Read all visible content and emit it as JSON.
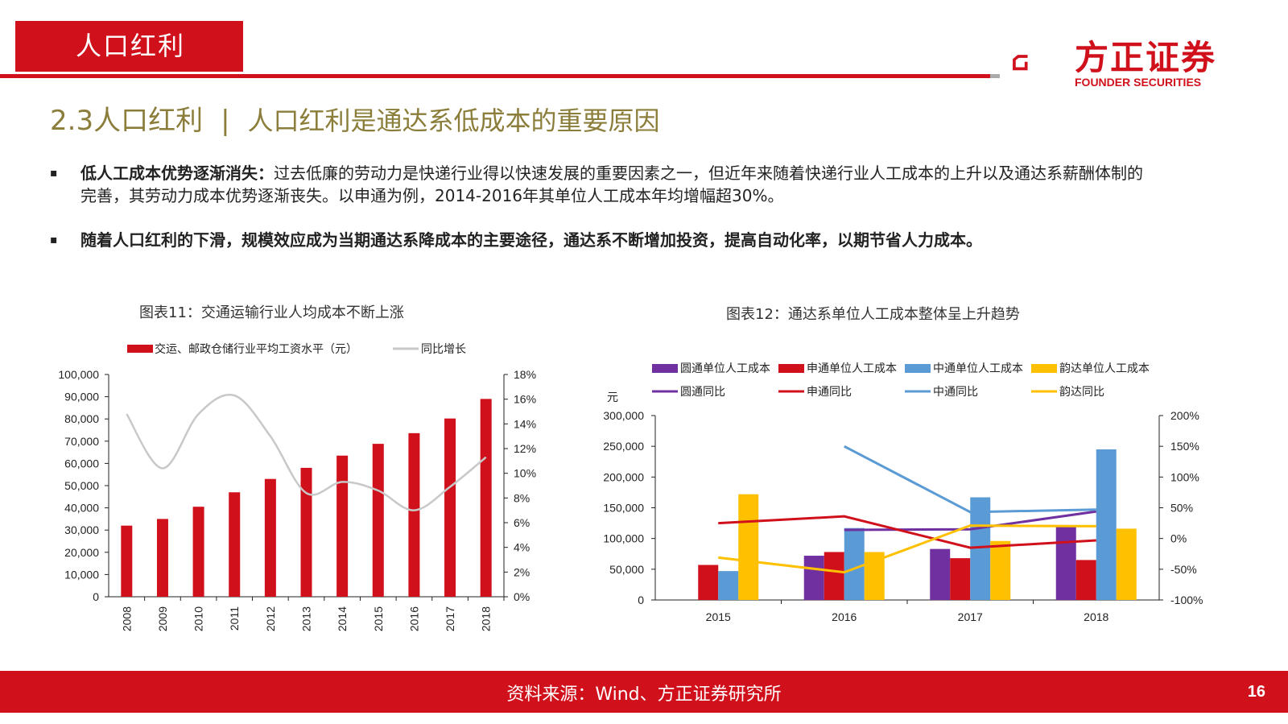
{
  "header": {
    "tag": "人口红利",
    "logo_name": "方正证券",
    "logo_en": "FOUNDER SECURITIES",
    "title_prefix": "2.3人口红利",
    "title_sep": "|",
    "title_sub": "人口红利是通达系低成本的重要原因"
  },
  "bullets": [
    {
      "mark": "▪",
      "bold": "低人工成本优势逐渐消失：",
      "text": "过去低廉的劳动力是快递行业得以快速发展的重要因素之一，但近年来随着快递行业人工成本的上升以及通达系薪酬体制的完善，其劳动力成本优势逐渐丧失。以申通为例，2014-2016年其单位人工成本年均增幅超30%。"
    },
    {
      "mark": "▪",
      "bold": "随着人口红利的下滑，规模效应成为当期通达系降成本的主要途径，通达系不断增加投资，提高自动化率，以期节省人力成本。",
      "text": ""
    }
  ],
  "colors": {
    "red": "#d0101b",
    "gray": "#c8c8c8",
    "purple": "#7030a0",
    "blue": "#5b9bd5",
    "yellow": "#ffc000",
    "title": "#8b7d3a"
  },
  "chart_data": [
    {
      "type": "bar",
      "title": "图表11：交通运输行业人均成本不断上涨",
      "categories": [
        "2008",
        "2009",
        "2010",
        "2011",
        "2012",
        "2013",
        "2014",
        "2015",
        "2016",
        "2017",
        "2018"
      ],
      "series": [
        {
          "name": "交运、邮政仓储行业平均工资水平（元）",
          "type": "bar",
          "axis": "left",
          "values": [
            32000,
            35000,
            40500,
            47000,
            53000,
            58000,
            63500,
            68800,
            73600,
            80200,
            89000
          ]
        },
        {
          "name": "同比增长",
          "type": "line",
          "axis": "right",
          "values": [
            14.8,
            10.4,
            14.8,
            16.3,
            13.0,
            8.4,
            9.3,
            8.6,
            7.0,
            8.9,
            11.3
          ]
        }
      ],
      "left_ticks": [
        "100,000",
        "90,000",
        "80,000",
        "70,000",
        "60,000",
        "50,000",
        "40,000",
        "30,000",
        "20,000",
        "10,000",
        "0"
      ],
      "right_ticks": [
        "18%",
        "16%",
        "14%",
        "12%",
        "10%",
        "8%",
        "6%",
        "4%",
        "2%",
        "0%"
      ],
      "ylim_left": [
        0,
        100000
      ],
      "ylim_right": [
        0,
        18
      ],
      "legend_placement": "top"
    },
    {
      "type": "bar",
      "title": "图表12：通达系单位人工成本整体呈上升趋势",
      "categories": [
        "2015",
        "2016",
        "2017",
        "2018"
      ],
      "ylabel_left": "元",
      "series": [
        {
          "name": "圆通单位人工成本",
          "type": "bar",
          "axis": "left",
          "color": "purple",
          "values": [
            null,
            72000,
            83000,
            120000
          ]
        },
        {
          "name": "申通单位人工成本",
          "type": "bar",
          "axis": "left",
          "color": "red",
          "values": [
            57000,
            78000,
            68000,
            65000
          ]
        },
        {
          "name": "中通单位人工成本",
          "type": "bar",
          "axis": "left",
          "color": "blue",
          "values": [
            47000,
            117000,
            167000,
            245000
          ]
        },
        {
          "name": "韵达单位人工成本",
          "type": "bar",
          "axis": "left",
          "color": "yellow",
          "values": [
            172000,
            78000,
            96000,
            116000
          ]
        },
        {
          "name": "圆通同比",
          "type": "line",
          "axis": "right",
          "color": "purple",
          "values": [
            null,
            14,
            15,
            44
          ]
        },
        {
          "name": "申通同比",
          "type": "line",
          "axis": "right",
          "color": "red",
          "values": [
            25,
            36,
            -15,
            -3
          ]
        },
        {
          "name": "中通同比",
          "type": "line",
          "axis": "right",
          "color": "blue",
          "values": [
            null,
            150,
            43,
            47
          ]
        },
        {
          "name": "韵达同比",
          "type": "line",
          "axis": "right",
          "color": "yellow",
          "values": [
            -31,
            -55,
            21,
            20
          ]
        }
      ],
      "left_ticks": [
        "300,000",
        "250,000",
        "200,000",
        "150,000",
        "100,000",
        "50,000",
        "0"
      ],
      "right_ticks": [
        "200%",
        "150%",
        "100%",
        "50%",
        "0%",
        "-50%",
        "-100%"
      ],
      "ylim_left": [
        0,
        300000
      ],
      "ylim_right": [
        -100,
        200
      ],
      "legend_placement": "top"
    }
  ],
  "footer": {
    "source": "资料来源：Wind、方正证券研究所",
    "page": "16"
  }
}
